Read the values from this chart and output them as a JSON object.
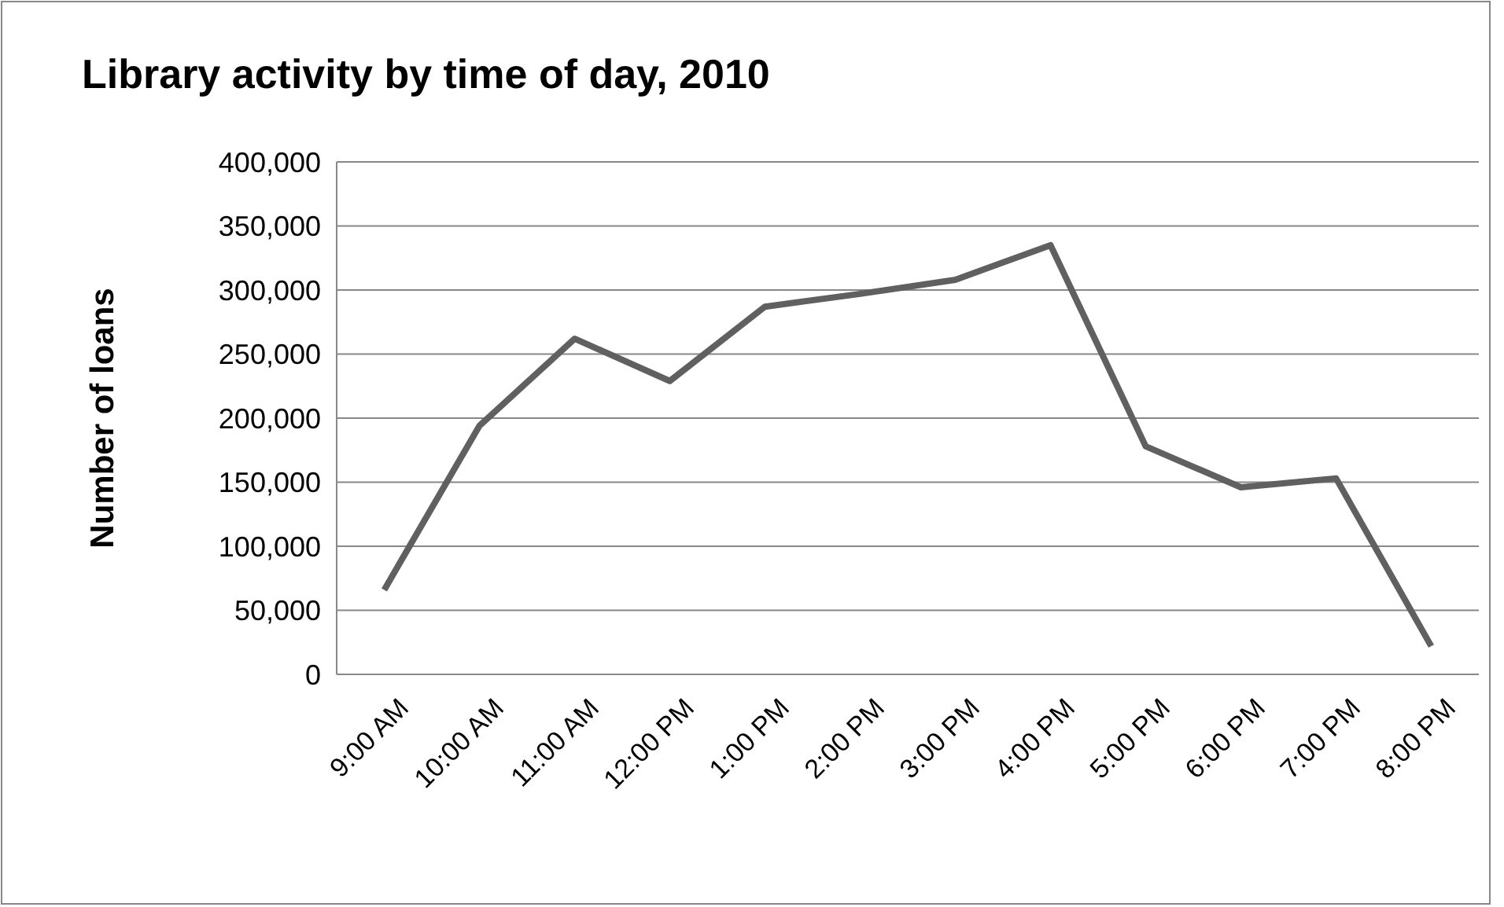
{
  "chart_data": {
    "type": "line",
    "title": "Library activity by time of day, 2010",
    "ylabel": "Number of loans",
    "categories": [
      "9:00 AM",
      "10:00 AM",
      "11:00 AM",
      "12:00 PM",
      "1:00 PM",
      "2:00 PM",
      "3:00 PM",
      "4:00 PM",
      "5:00 PM",
      "6:00 PM",
      "7:00 PM",
      "8:00 PM"
    ],
    "series": [
      {
        "color": "#606060",
        "values": [
          66000,
          194000,
          262000,
          229000,
          287000,
          297000,
          308000,
          335000,
          178000,
          146000,
          153000,
          22000
        ]
      }
    ],
    "ylim": [
      0,
      400000
    ],
    "yticks": [
      {
        "value": 0,
        "label": "0"
      },
      {
        "value": 50000,
        "label": "50,000"
      },
      {
        "value": 100000,
        "label": "100,000"
      },
      {
        "value": 150000,
        "label": "150,000"
      },
      {
        "value": 200000,
        "label": "200,000"
      },
      {
        "value": 250000,
        "label": "250,000"
      },
      {
        "value": 300000,
        "label": "300,000"
      },
      {
        "value": 350000,
        "label": "350,000"
      },
      {
        "value": 400000,
        "label": "400,000"
      }
    ],
    "grid": "y",
    "marker": "none",
    "line_style": "solid"
  }
}
